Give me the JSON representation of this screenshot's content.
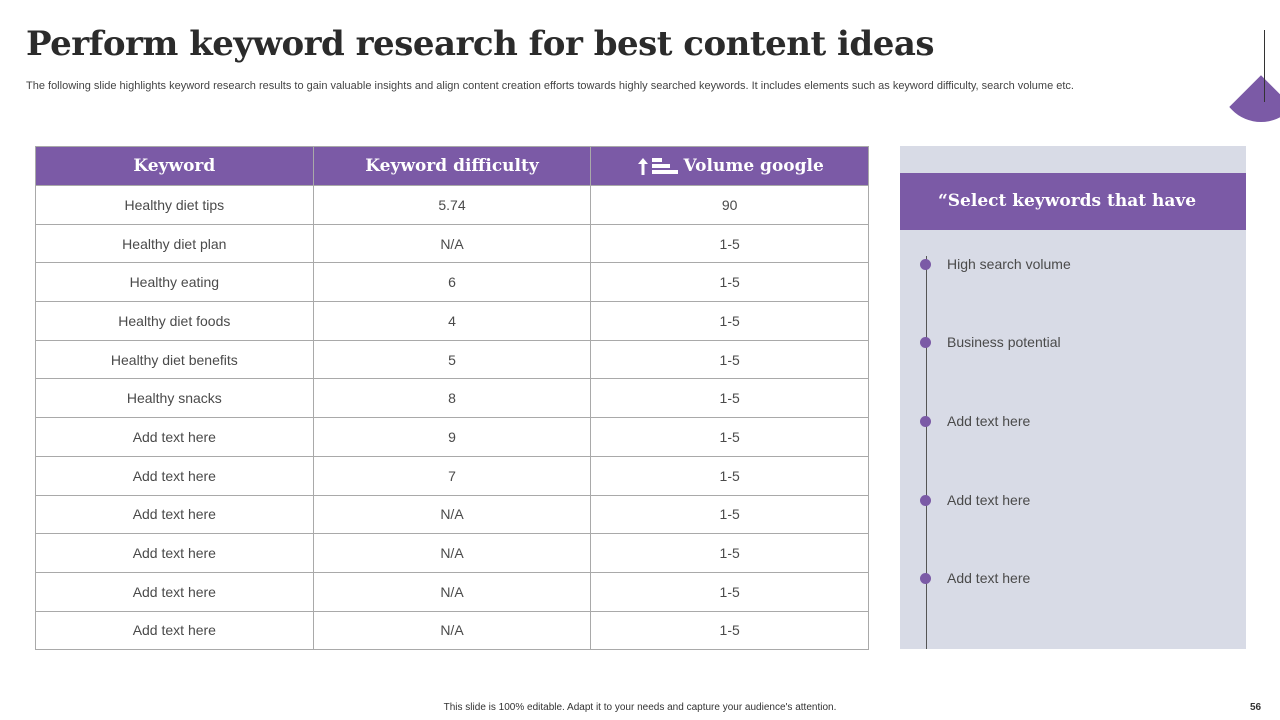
{
  "slide": {
    "title": "Perform keyword research for best content ideas",
    "subtitle": "The following slide highlights keyword research results to gain valuable insights and align content creation efforts towards highly searched keywords. It includes elements such as keyword difficulty, search volume etc.",
    "footer": "This slide is 100% editable.  Adapt it to your needs and capture your audience's attention.",
    "page_number": "56",
    "accent_color": "#7b5aa6"
  },
  "table": {
    "headers": [
      "Keyword",
      "Keyword difficulty",
      "Volume google"
    ],
    "volume_icon": "sort-bars-icon",
    "rows": [
      [
        "Healthy diet tips",
        "5.74",
        "90"
      ],
      [
        "Healthy diet plan",
        "N/A",
        "1-5"
      ],
      [
        "Healthy eating",
        "6",
        "1-5"
      ],
      [
        "Healthy diet foods",
        "4",
        "1-5"
      ],
      [
        "Healthy diet benefits",
        "5",
        "1-5"
      ],
      [
        "Healthy snacks",
        "8",
        "1-5"
      ],
      [
        "Add text here",
        "9",
        "1-5"
      ],
      [
        "Add text here",
        "7",
        "1-5"
      ],
      [
        "Add text here",
        "N/A",
        "1-5"
      ],
      [
        "Add text here",
        "N/A",
        "1-5"
      ],
      [
        "Add text here",
        "N/A",
        "1-5"
      ],
      [
        "Add text here",
        "N/A",
        "1-5"
      ]
    ]
  },
  "panel": {
    "header": "“Select keywords that have",
    "items": [
      "High search volume",
      "Business potential",
      "Add text here",
      "Add text here",
      "Add text here"
    ]
  }
}
